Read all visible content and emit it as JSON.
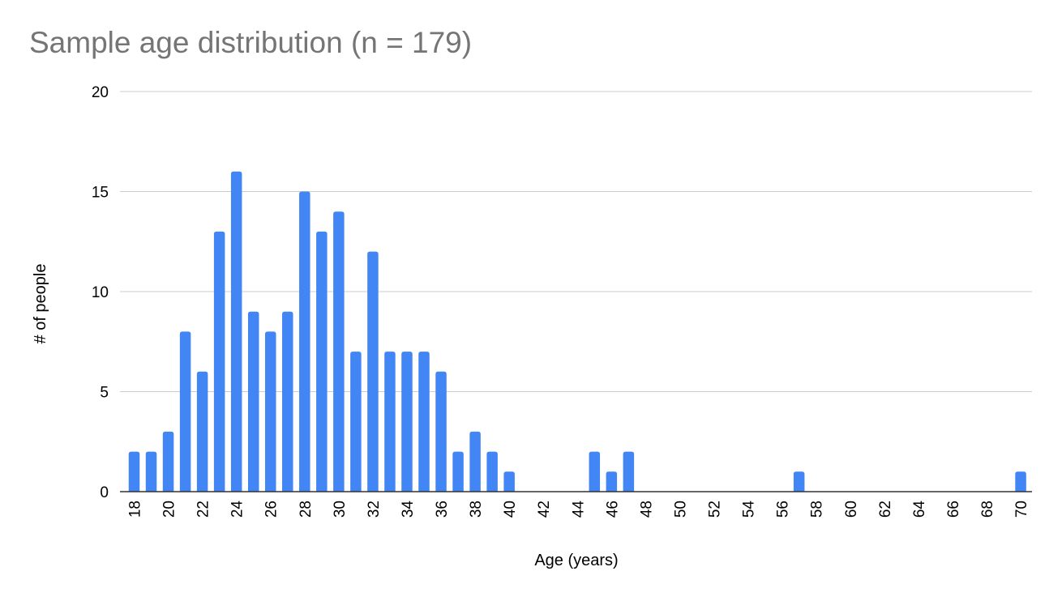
{
  "chart_data": {
    "type": "bar",
    "title": "Sample age distribution (n = 179)",
    "xlabel": "Age (years)",
    "ylabel": "# of people",
    "ylim": [
      0,
      20
    ],
    "yticks": [
      "0",
      "5",
      "10",
      "15",
      "20"
    ],
    "xlim": [
      18,
      70
    ],
    "xticks": [
      "18",
      "20",
      "22",
      "24",
      "26",
      "28",
      "30",
      "32",
      "34",
      "36",
      "38",
      "40",
      "42",
      "44",
      "46",
      "48",
      "50",
      "52",
      "54",
      "56",
      "58",
      "60",
      "62",
      "64",
      "66",
      "68",
      "70"
    ],
    "x": [
      18,
      19,
      20,
      21,
      22,
      23,
      24,
      25,
      26,
      27,
      28,
      29,
      30,
      31,
      32,
      33,
      34,
      35,
      36,
      37,
      38,
      39,
      40,
      45,
      46,
      47,
      57,
      70
    ],
    "values": [
      2,
      2,
      3,
      8,
      6,
      13,
      16,
      9,
      8,
      9,
      15,
      13,
      14,
      7,
      12,
      7,
      7,
      7,
      6,
      2,
      3,
      2,
      1,
      2,
      1,
      2,
      1,
      1
    ],
    "bar_color": "#4285f4",
    "grid": true,
    "gridline_color": "#cccccc",
    "title_color": "#757575"
  }
}
